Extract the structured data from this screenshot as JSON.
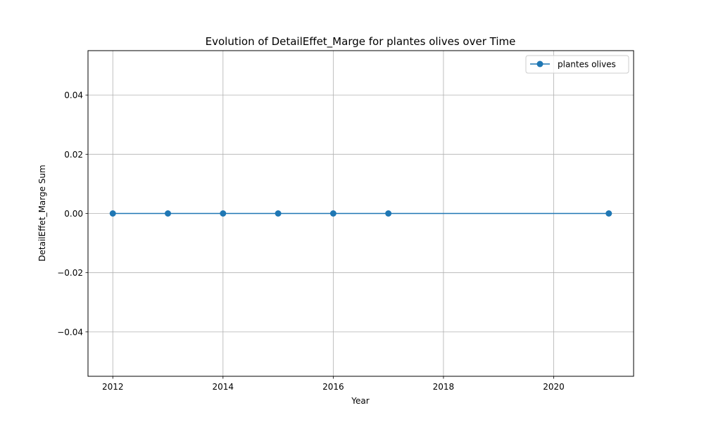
{
  "chart_data": {
    "type": "line",
    "title": "Evolution of DetailEffet_Marge for plantes olives over Time",
    "xlabel": "Year",
    "ylabel": "DetailEffet_Marge Sum",
    "xlim": [
      2011.55,
      2021.45
    ],
    "ylim": [
      -0.055,
      0.055
    ],
    "xticks": [
      2012,
      2014,
      2016,
      2018,
      2020
    ],
    "xtick_labels": [
      "2012",
      "2014",
      "2016",
      "2018",
      "2020"
    ],
    "yticks": [
      0.04,
      0.02,
      0.0,
      -0.02,
      -0.04
    ],
    "ytick_labels": [
      "0.04",
      "0.02",
      "0.00",
      "−0.02",
      "−0.04"
    ],
    "grid": true,
    "legend_position": "top-right",
    "series": [
      {
        "name": "plantes olives",
        "color": "#1f77b4",
        "marker": "circle",
        "x": [
          2012,
          2013,
          2014,
          2015,
          2016,
          2017,
          2021
        ],
        "y": [
          0,
          0,
          0,
          0,
          0,
          0,
          0
        ]
      }
    ]
  }
}
